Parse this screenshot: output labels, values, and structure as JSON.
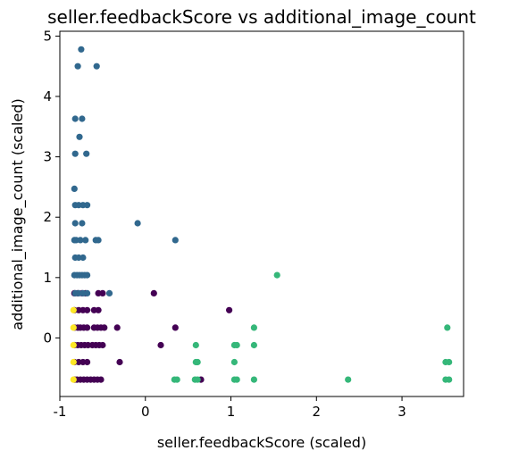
{
  "chart_data": {
    "type": "scatter",
    "title": "seller.feedbackScore vs additional_image_count",
    "xlabel": "seller.feedbackScore (scaled)",
    "ylabel": "additional_image_count (scaled)",
    "xlim": [
      -1.0,
      3.72
    ],
    "ylim": [
      -0.97,
      5.08
    ],
    "xticks": [
      "-1",
      "0",
      "1",
      "2",
      "3"
    ],
    "yticks": [
      "0",
      "1",
      "2",
      "3",
      "4",
      "5"
    ],
    "xtick_values": [
      -1,
      0,
      1,
      2,
      3
    ],
    "ytick_values": [
      0,
      1,
      2,
      3,
      4,
      5
    ],
    "grid": false,
    "colors": {
      "cluster_purple": "#440154",
      "cluster_blue": "#31688e",
      "cluster_green": "#35b779",
      "cluster_yellow": "#fde725"
    },
    "series": [
      {
        "color": "#440154",
        "points": [
          [
            -0.83,
            0.74
          ],
          [
            -0.79,
            0.74
          ],
          [
            -0.74,
            0.74
          ],
          [
            -0.7,
            0.74
          ],
          [
            -0.55,
            0.74
          ],
          [
            -0.5,
            0.74
          ],
          [
            0.1,
            0.74
          ],
          [
            -0.83,
            0.17
          ],
          [
            -0.79,
            0.17
          ],
          [
            -0.76,
            0.17
          ],
          [
            -0.72,
            0.17
          ],
          [
            -0.68,
            0.17
          ],
          [
            -0.6,
            0.17
          ],
          [
            -0.56,
            0.17
          ],
          [
            -0.52,
            0.17
          ],
          [
            -0.48,
            0.17
          ],
          [
            -0.33,
            0.17
          ],
          [
            0.35,
            0.17
          ],
          [
            -0.83,
            -0.12
          ],
          [
            -0.79,
            -0.12
          ],
          [
            -0.75,
            -0.12
          ],
          [
            -0.71,
            -0.12
          ],
          [
            -0.67,
            -0.12
          ],
          [
            -0.62,
            -0.12
          ],
          [
            -0.58,
            -0.12
          ],
          [
            -0.54,
            -0.12
          ],
          [
            -0.5,
            -0.12
          ],
          [
            0.18,
            -0.12
          ],
          [
            -0.83,
            -0.4
          ],
          [
            -0.78,
            -0.4
          ],
          [
            -0.73,
            -0.4
          ],
          [
            -0.68,
            -0.4
          ],
          [
            -0.3,
            -0.4
          ],
          [
            -0.83,
            -0.69
          ],
          [
            -0.8,
            -0.69
          ],
          [
            -0.76,
            -0.69
          ],
          [
            -0.72,
            -0.69
          ],
          [
            -0.68,
            -0.69
          ],
          [
            -0.64,
            -0.69
          ],
          [
            -0.6,
            -0.69
          ],
          [
            -0.56,
            -0.69
          ],
          [
            -0.52,
            -0.69
          ],
          [
            0.65,
            -0.69
          ],
          [
            -0.83,
            0.46
          ],
          [
            -0.78,
            0.46
          ],
          [
            -0.73,
            0.46
          ],
          [
            -0.68,
            0.46
          ],
          [
            -0.6,
            0.46
          ],
          [
            -0.55,
            0.46
          ],
          [
            0.98,
            0.46
          ]
        ]
      },
      {
        "color": "#31688e",
        "points": [
          [
            -0.75,
            4.78
          ],
          [
            -0.79,
            4.5
          ],
          [
            -0.57,
            4.5
          ],
          [
            -0.82,
            3.63
          ],
          [
            -0.74,
            3.63
          ],
          [
            -0.77,
            3.33
          ],
          [
            -0.82,
            3.05
          ],
          [
            -0.69,
            3.05
          ],
          [
            -0.83,
            2.47
          ],
          [
            -0.82,
            2.2
          ],
          [
            -0.78,
            2.2
          ],
          [
            -0.73,
            2.2
          ],
          [
            -0.68,
            2.2
          ],
          [
            -0.82,
            1.9
          ],
          [
            -0.74,
            1.9
          ],
          [
            -0.09,
            1.9
          ],
          [
            -0.83,
            1.62
          ],
          [
            -0.81,
            1.62
          ],
          [
            -0.76,
            1.62
          ],
          [
            -0.7,
            1.62
          ],
          [
            -0.58,
            1.62
          ],
          [
            -0.55,
            1.62
          ],
          [
            0.35,
            1.62
          ],
          [
            -0.82,
            1.33
          ],
          [
            -0.78,
            1.33
          ],
          [
            -0.73,
            1.33
          ],
          [
            -0.83,
            1.04
          ],
          [
            -0.8,
            1.04
          ],
          [
            -0.77,
            1.04
          ],
          [
            -0.74,
            1.04
          ],
          [
            -0.71,
            1.04
          ],
          [
            -0.68,
            1.04
          ],
          [
            -0.82,
            0.74
          ],
          [
            -0.78,
            0.74
          ],
          [
            -0.73,
            0.74
          ],
          [
            -0.68,
            0.74
          ],
          [
            -0.42,
            0.74
          ]
        ]
      },
      {
        "color": "#35b779",
        "points": [
          [
            1.54,
            1.04
          ],
          [
            1.27,
            0.17
          ],
          [
            3.53,
            0.17
          ],
          [
            0.59,
            -0.12
          ],
          [
            1.04,
            -0.12
          ],
          [
            1.07,
            -0.12
          ],
          [
            1.27,
            -0.12
          ],
          [
            0.59,
            -0.4
          ],
          [
            0.61,
            -0.4
          ],
          [
            1.04,
            -0.4
          ],
          [
            3.51,
            -0.4
          ],
          [
            3.55,
            -0.4
          ],
          [
            0.34,
            -0.69
          ],
          [
            0.37,
            -0.69
          ],
          [
            0.58,
            -0.69
          ],
          [
            0.61,
            -0.69
          ],
          [
            1.04,
            -0.69
          ],
          [
            1.07,
            -0.69
          ],
          [
            1.27,
            -0.69
          ],
          [
            2.37,
            -0.69
          ],
          [
            3.51,
            -0.69
          ],
          [
            3.55,
            -0.69
          ]
        ]
      },
      {
        "color": "#fde725",
        "points": [
          [
            -0.84,
            0.46
          ],
          [
            -0.84,
            0.17
          ],
          [
            -0.84,
            -0.12
          ],
          [
            -0.84,
            -0.4
          ],
          [
            -0.84,
            -0.69
          ]
        ]
      }
    ]
  }
}
